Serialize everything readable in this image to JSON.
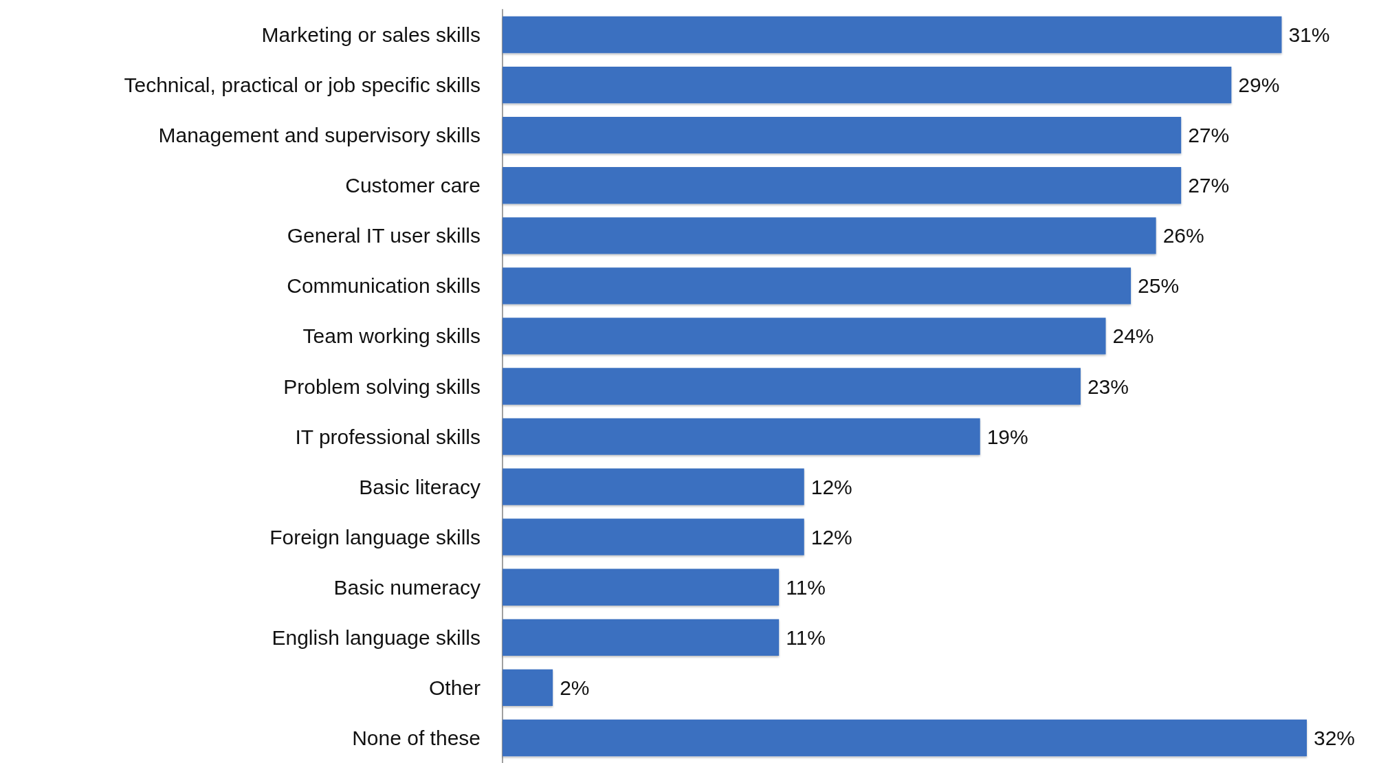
{
  "chart_data": {
    "type": "bar",
    "orientation": "horizontal",
    "categories": [
      "Marketing or sales skills",
      "Technical, practical or job specific skills",
      "Management and supervisory skills",
      "Customer care",
      "General IT user skills",
      "Communication skills",
      "Team working skills",
      "Problem solving skills",
      "IT professional skills",
      "Basic literacy",
      "Foreign language skills",
      "Basic numeracy",
      "English language skills",
      "Other",
      "None of these"
    ],
    "values": [
      31,
      29,
      27,
      27,
      26,
      25,
      24,
      23,
      19,
      12,
      12,
      11,
      11,
      2,
      32
    ],
    "value_labels": [
      "31%",
      "29%",
      "27%",
      "27%",
      "26%",
      "25%",
      "24%",
      "23%",
      "19%",
      "12%",
      "12%",
      "11%",
      "11%",
      "2%",
      "32%"
    ],
    "color": "#3b70c0",
    "tick_labels": "y",
    "grid": false
  }
}
